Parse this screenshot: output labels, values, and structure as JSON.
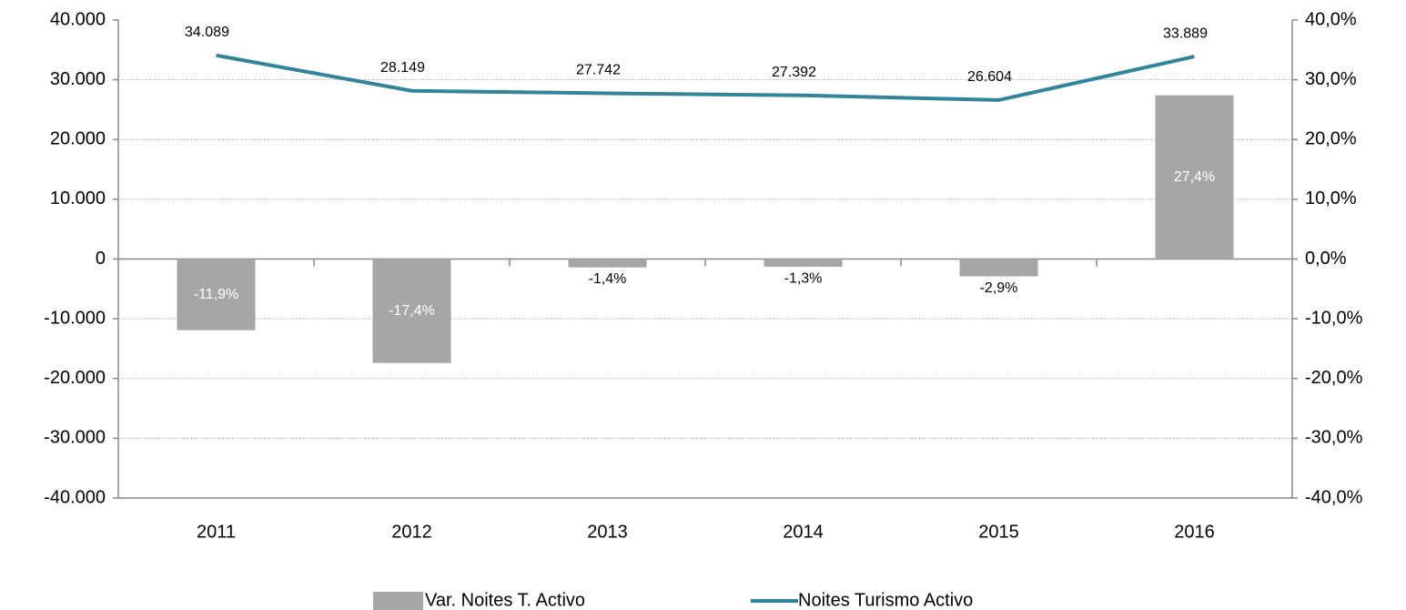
{
  "chart_data": {
    "type": "combo",
    "categories": [
      "2011",
      "2012",
      "2013",
      "2014",
      "2015",
      "2016"
    ],
    "series": [
      {
        "name": "Var. Noites T. Activo",
        "type": "bar",
        "axis": "y2",
        "color": "#a6a6a6",
        "values": [
          -11.9,
          -17.4,
          -1.4,
          -1.3,
          -2.9,
          27.4
        ],
        "value_labels": [
          "-11,9%",
          "-17,4%",
          "-1,4%",
          "-1,3%",
          "-2,9%",
          "27,4%"
        ]
      },
      {
        "name": "Noites Turismo Activo",
        "type": "line",
        "axis": "y",
        "color": "#31849b",
        "values": [
          34089,
          28149,
          27742,
          27392,
          26604,
          33889
        ],
        "value_labels": [
          "34.089",
          "28.149",
          "27.742",
          "27.392",
          "26.604",
          "33.889"
        ]
      }
    ],
    "ylim": [
      -40000,
      40000
    ],
    "yticks": [
      {
        "value": -40000,
        "label": "-40.000"
      },
      {
        "value": -30000,
        "label": "-30.000"
      },
      {
        "value": -20000,
        "label": "-20.000"
      },
      {
        "value": -10000,
        "label": "-10.000"
      },
      0,
      {
        "value": 10000,
        "label": "10.000"
      },
      {
        "value": 20000,
        "label": "20.000"
      },
      {
        "value": 30000,
        "label": "30.000"
      },
      {
        "value": 40000,
        "label": "40.000"
      }
    ],
    "y2lim": [
      -40,
      40
    ],
    "y2ticks": [
      {
        "value": -40,
        "label": "-40,0%"
      },
      {
        "value": -30,
        "label": "-30,0%"
      },
      {
        "value": -20,
        "label": "-20,0%"
      },
      {
        "value": -10,
        "label": "-10,0%"
      },
      {
        "value": 0,
        "label": "0,0%"
      },
      {
        "value": 10,
        "label": "10,0%"
      },
      {
        "value": 20,
        "label": "20,0%"
      },
      {
        "value": 30,
        "label": "30,0%"
      },
      {
        "value": 40,
        "label": "40,0%"
      }
    ],
    "grid": true
  }
}
